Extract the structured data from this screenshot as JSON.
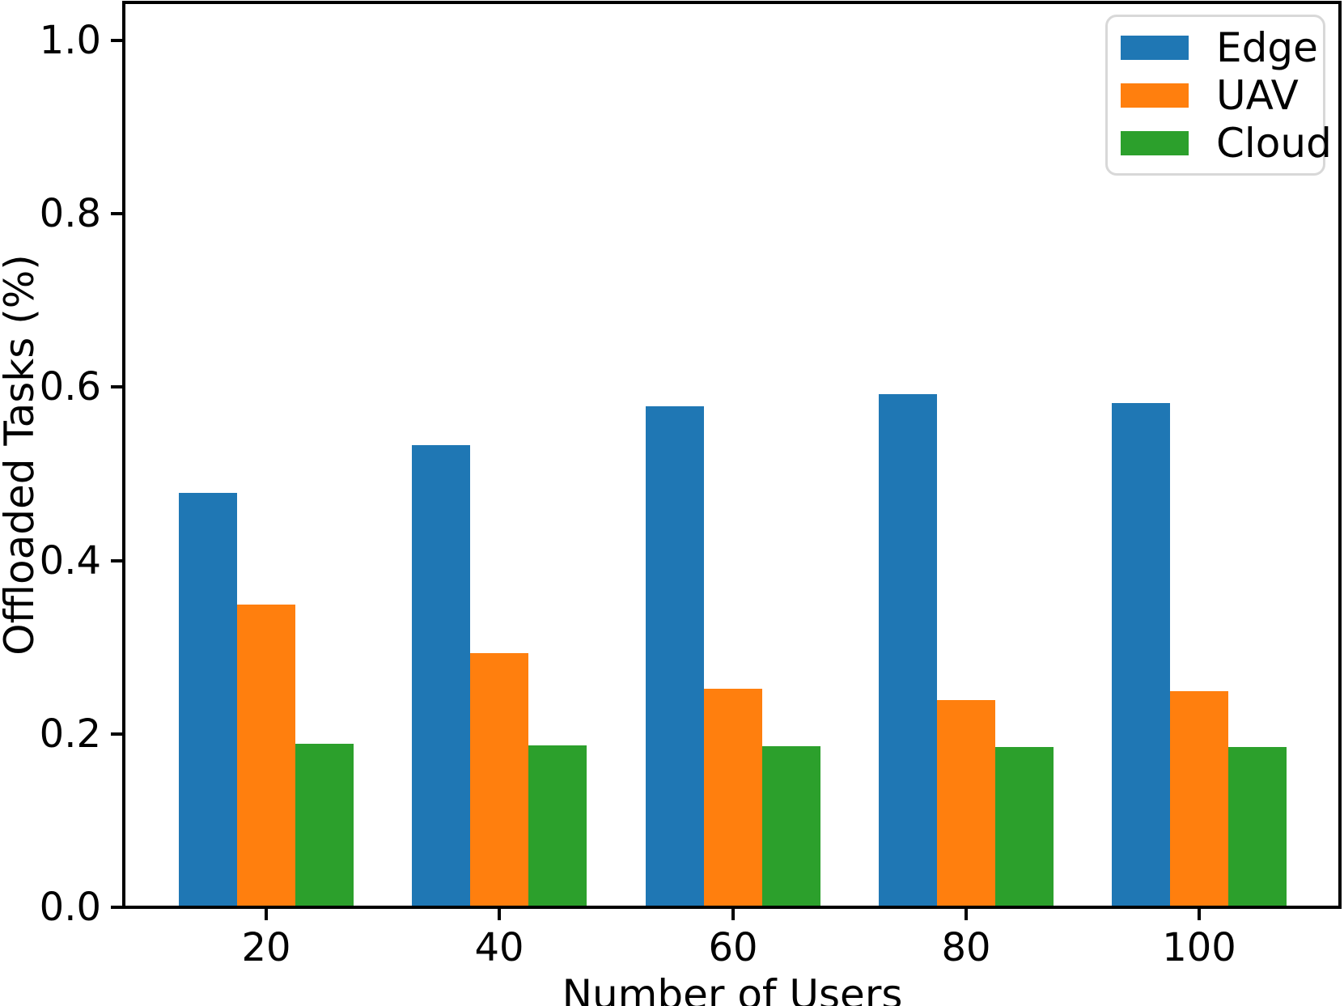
{
  "chart_data": {
    "type": "bar",
    "title": "",
    "xlabel": "Number of Users",
    "ylabel": "Offloaded Tasks (%)",
    "categories": [
      "20",
      "40",
      "60",
      "80",
      "100"
    ],
    "series": [
      {
        "name": "Edge",
        "color": "#1f77b4",
        "values": [
          0.476,
          0.531,
          0.576,
          0.59,
          0.58
        ]
      },
      {
        "name": "UAV",
        "color": "#ff7f0e",
        "values": [
          0.347,
          0.291,
          0.25,
          0.237,
          0.247
        ]
      },
      {
        "name": "Cloud",
        "color": "#2ca02c",
        "values": [
          0.187,
          0.185,
          0.184,
          0.183,
          0.183
        ]
      }
    ],
    "yticks": [
      {
        "value": 0.0,
        "label": "0.0"
      },
      {
        "value": 0.2,
        "label": "0.2"
      },
      {
        "value": 0.4,
        "label": "0.4"
      },
      {
        "value": 0.6,
        "label": "0.6"
      },
      {
        "value": 0.8,
        "label": "0.8"
      },
      {
        "value": 1.0,
        "label": "1.0"
      }
    ],
    "ylim": [
      0,
      1.04
    ],
    "grid": false,
    "legend_position": "upper right"
  }
}
